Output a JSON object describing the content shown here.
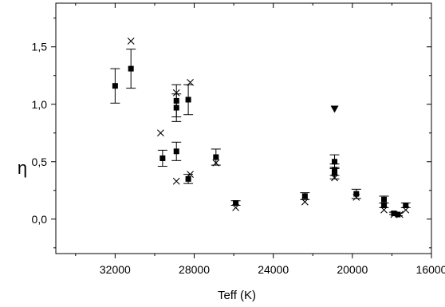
{
  "chart_data": {
    "type": "scatter",
    "xlabel": "Teff (K)",
    "ylabel": "η",
    "xlim": [
      35000,
      16000
    ],
    "ylim": [
      -0.3,
      1.88
    ],
    "x_reversed": true,
    "xticks": [
      32000,
      28000,
      24000,
      20000,
      16000
    ],
    "xtick_labels": [
      "32000",
      "28000",
      "24000",
      "20000",
      "16000"
    ],
    "yticks": [
      0.0,
      0.5,
      1.0,
      1.5
    ],
    "ytick_labels": [
      "0,0",
      "0,5",
      "1,0",
      "1,5"
    ],
    "grid": false,
    "legend": "none",
    "series": [
      {
        "marker": "filled-square",
        "color": "#000000",
        "points": [
          {
            "x": 32000,
            "y": 1.16,
            "err": 0.15
          },
          {
            "x": 31200,
            "y": 1.31,
            "err": 0.17
          },
          {
            "x": 29600,
            "y": 0.53,
            "err": 0.07
          },
          {
            "x": 28900,
            "y": 1.03,
            "err": 0.14
          },
          {
            "x": 28900,
            "y": 0.97,
            "err": 0.12
          },
          {
            "x": 28900,
            "y": 0.59,
            "err": 0.08
          },
          {
            "x": 28300,
            "y": 1.04,
            "err": 0.13
          },
          {
            "x": 28300,
            "y": 0.35,
            "err": 0.04
          },
          {
            "x": 26900,
            "y": 0.54,
            "err": 0.07
          },
          {
            "x": 25900,
            "y": 0.14,
            "err": 0.02
          },
          {
            "x": 22400,
            "y": 0.2,
            "err": 0.03
          },
          {
            "x": 20900,
            "y": 0.5,
            "err": 0.06
          },
          {
            "x": 20900,
            "y": 0.43,
            "err": 0.05
          },
          {
            "x": 20900,
            "y": 0.4,
            "err": 0.05
          },
          {
            "x": 19800,
            "y": 0.22,
            "err": 0.04
          },
          {
            "x": 18400,
            "y": 0.17,
            "err": 0.03
          },
          {
            "x": 18400,
            "y": 0.12,
            "err": 0.02
          },
          {
            "x": 17900,
            "y": 0.05,
            "err": 0.01
          },
          {
            "x": 17700,
            "y": 0.04,
            "err": 0.01
          },
          {
            "x": 17300,
            "y": 0.12,
            "err": 0.02
          }
        ]
      },
      {
        "marker": "cross",
        "color": "#000000",
        "points": [
          {
            "x": 31200,
            "y": 1.55
          },
          {
            "x": 29700,
            "y": 0.75
          },
          {
            "x": 28900,
            "y": 1.1
          },
          {
            "x": 28900,
            "y": 0.33
          },
          {
            "x": 28200,
            "y": 1.19
          },
          {
            "x": 28200,
            "y": 0.39
          },
          {
            "x": 26900,
            "y": 0.49
          },
          {
            "x": 25900,
            "y": 0.1
          },
          {
            "x": 22400,
            "y": 0.15
          },
          {
            "x": 20900,
            "y": 0.36
          },
          {
            "x": 19800,
            "y": 0.19
          },
          {
            "x": 18400,
            "y": 0.08
          },
          {
            "x": 17900,
            "y": 0.04
          },
          {
            "x": 17600,
            "y": 0.04
          },
          {
            "x": 17300,
            "y": 0.08
          }
        ]
      },
      {
        "marker": "filled-triangle-down",
        "color": "#000000",
        "points": [
          {
            "x": 20900,
            "y": 0.96
          }
        ]
      }
    ]
  }
}
